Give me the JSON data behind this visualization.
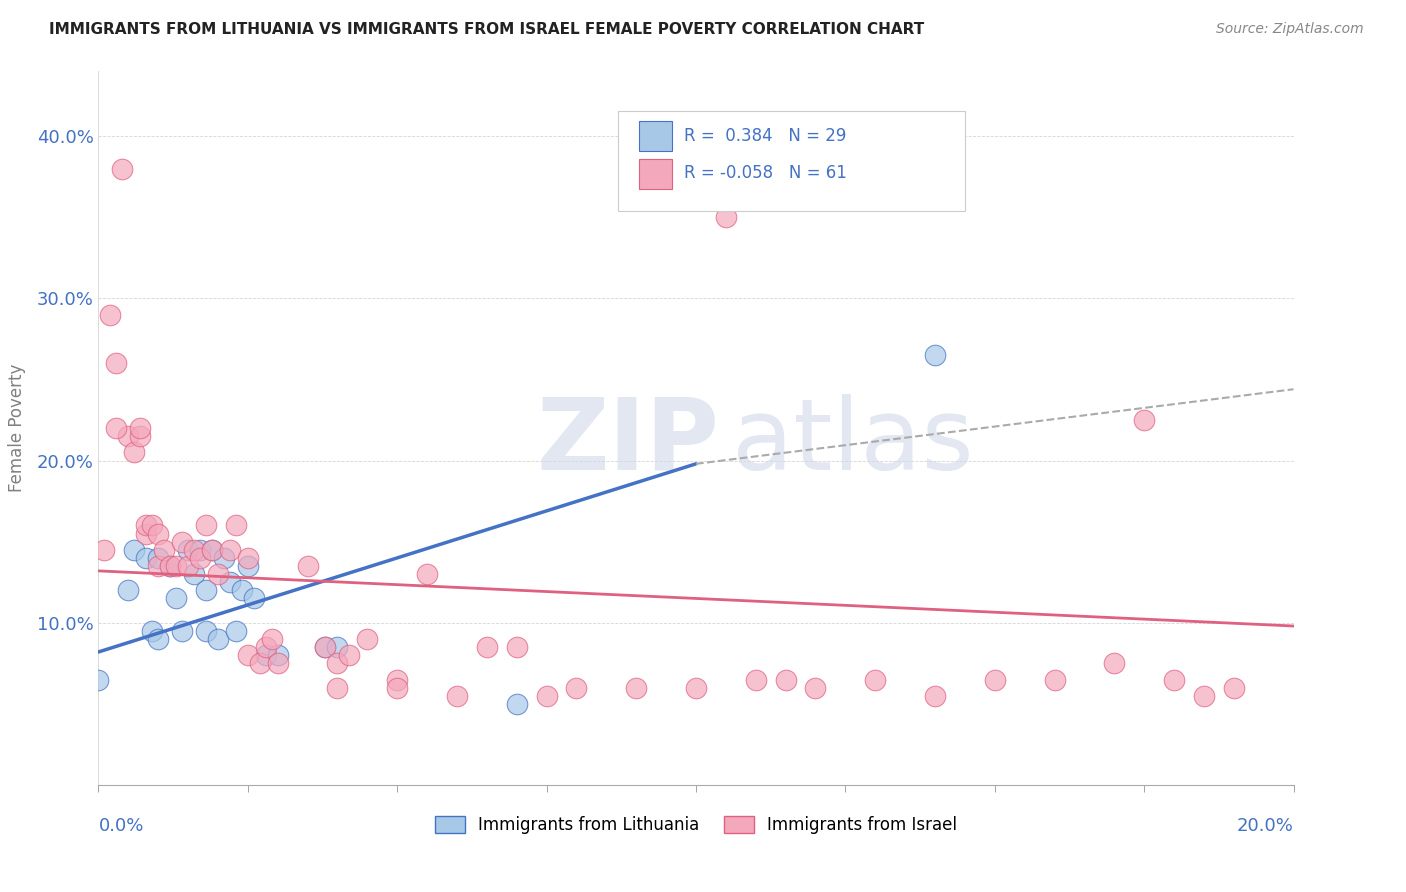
{
  "title": "IMMIGRANTS FROM LITHUANIA VS IMMIGRANTS FROM ISRAEL FEMALE POVERTY CORRELATION CHART",
  "source": "Source: ZipAtlas.com",
  "ylabel": "Female Poverty",
  "y_ticks": [
    0.1,
    0.2,
    0.3,
    0.4
  ],
  "y_tick_labels": [
    "10.0%",
    "20.0%",
    "30.0%",
    "40.0%"
  ],
  "xlim": [
    0.0,
    0.2
  ],
  "ylim": [
    0.0,
    0.44
  ],
  "color_blue": "#A8C8E8",
  "color_pink": "#F4A8BC",
  "color_blue_line": "#4472C4",
  "color_pink_line": "#E06080",
  "color_dashed": "#AAAAAA",
  "watermark_zip": "ZIP",
  "watermark_atlas": "atlas",
  "blue_scatter_x": [
    0.0,
    0.005,
    0.006,
    0.008,
    0.009,
    0.01,
    0.01,
    0.012,
    0.013,
    0.014,
    0.015,
    0.016,
    0.017,
    0.018,
    0.018,
    0.019,
    0.02,
    0.021,
    0.022,
    0.023,
    0.024,
    0.025,
    0.026,
    0.028,
    0.03,
    0.038,
    0.04,
    0.07,
    0.14
  ],
  "blue_scatter_y": [
    0.065,
    0.12,
    0.145,
    0.14,
    0.095,
    0.09,
    0.14,
    0.135,
    0.115,
    0.095,
    0.145,
    0.13,
    0.145,
    0.095,
    0.12,
    0.145,
    0.09,
    0.14,
    0.125,
    0.095,
    0.12,
    0.135,
    0.115,
    0.08,
    0.08,
    0.085,
    0.085,
    0.05,
    0.265
  ],
  "pink_scatter_x": [
    0.001,
    0.002,
    0.003,
    0.004,
    0.005,
    0.006,
    0.007,
    0.007,
    0.008,
    0.008,
    0.009,
    0.01,
    0.01,
    0.011,
    0.012,
    0.013,
    0.014,
    0.015,
    0.016,
    0.017,
    0.018,
    0.019,
    0.02,
    0.022,
    0.023,
    0.025,
    0.025,
    0.027,
    0.028,
    0.029,
    0.03,
    0.035,
    0.038,
    0.04,
    0.04,
    0.042,
    0.045,
    0.05,
    0.05,
    0.055,
    0.06,
    0.065,
    0.07,
    0.075,
    0.08,
    0.09,
    0.1,
    0.105,
    0.11,
    0.115,
    0.12,
    0.13,
    0.14,
    0.15,
    0.16,
    0.17,
    0.003,
    0.175,
    0.18,
    0.185,
    0.19
  ],
  "pink_scatter_y": [
    0.145,
    0.29,
    0.26,
    0.38,
    0.215,
    0.205,
    0.215,
    0.22,
    0.155,
    0.16,
    0.16,
    0.135,
    0.155,
    0.145,
    0.135,
    0.135,
    0.15,
    0.135,
    0.145,
    0.14,
    0.16,
    0.145,
    0.13,
    0.145,
    0.16,
    0.14,
    0.08,
    0.075,
    0.085,
    0.09,
    0.075,
    0.135,
    0.085,
    0.075,
    0.06,
    0.08,
    0.09,
    0.065,
    0.06,
    0.13,
    0.055,
    0.085,
    0.085,
    0.055,
    0.06,
    0.06,
    0.06,
    0.35,
    0.065,
    0.065,
    0.06,
    0.065,
    0.055,
    0.065,
    0.065,
    0.075,
    0.22,
    0.225,
    0.065,
    0.055,
    0.06
  ],
  "blue_line_x": [
    0.0,
    0.1
  ],
  "blue_line_y": [
    0.082,
    0.198
  ],
  "dashed_line_x": [
    0.1,
    0.2
  ],
  "dashed_line_y": [
    0.198,
    0.244
  ],
  "pink_line_x": [
    0.0,
    0.2
  ],
  "pink_line_y": [
    0.132,
    0.098
  ]
}
